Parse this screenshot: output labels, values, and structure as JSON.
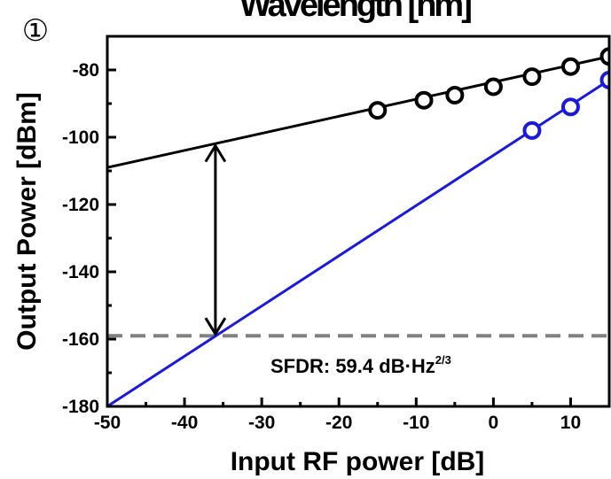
{
  "chart_data": {
    "type": "line",
    "title": "Wavelength [nm]",
    "panel_label": "①",
    "xlabel": "Input RF power [dB]",
    "ylabel": "Output Power [dBm]",
    "xlim": [
      -50,
      15
    ],
    "ylim": [
      -180,
      -70
    ],
    "xticks": [
      -50,
      -40,
      -30,
      -20,
      -10,
      0,
      10
    ],
    "yticks": [
      -180,
      -160,
      -140,
      -120,
      -100,
      -80
    ],
    "grid": false,
    "annotation": {
      "text": "SFDR: 59.4 dB·Hz",
      "superscript": "2/3"
    },
    "series": [
      {
        "color": "#000000",
        "points": [
          [
            -15,
            -92
          ],
          [
            -9,
            -89
          ],
          [
            -5,
            -87.5
          ],
          [
            0,
            -85
          ],
          [
            5,
            -82
          ],
          [
            10,
            -79
          ],
          [
            15,
            -76
          ]
        ],
        "fit_line": [
          [
            -50,
            -109
          ],
          [
            15,
            -76
          ]
        ]
      },
      {
        "color": "#1a1adc",
        "points": [
          [
            5,
            -98
          ],
          [
            10,
            -91
          ],
          [
            15,
            -83
          ]
        ],
        "fit_line": [
          [
            -50,
            -180
          ],
          [
            15,
            -83
          ]
        ]
      }
    ],
    "noise_floor": {
      "y": -159,
      "color": "#808080",
      "style": "dashed"
    },
    "sfdr_arrow": {
      "x": -36,
      "y_top": -102,
      "y_bottom": -159
    }
  }
}
